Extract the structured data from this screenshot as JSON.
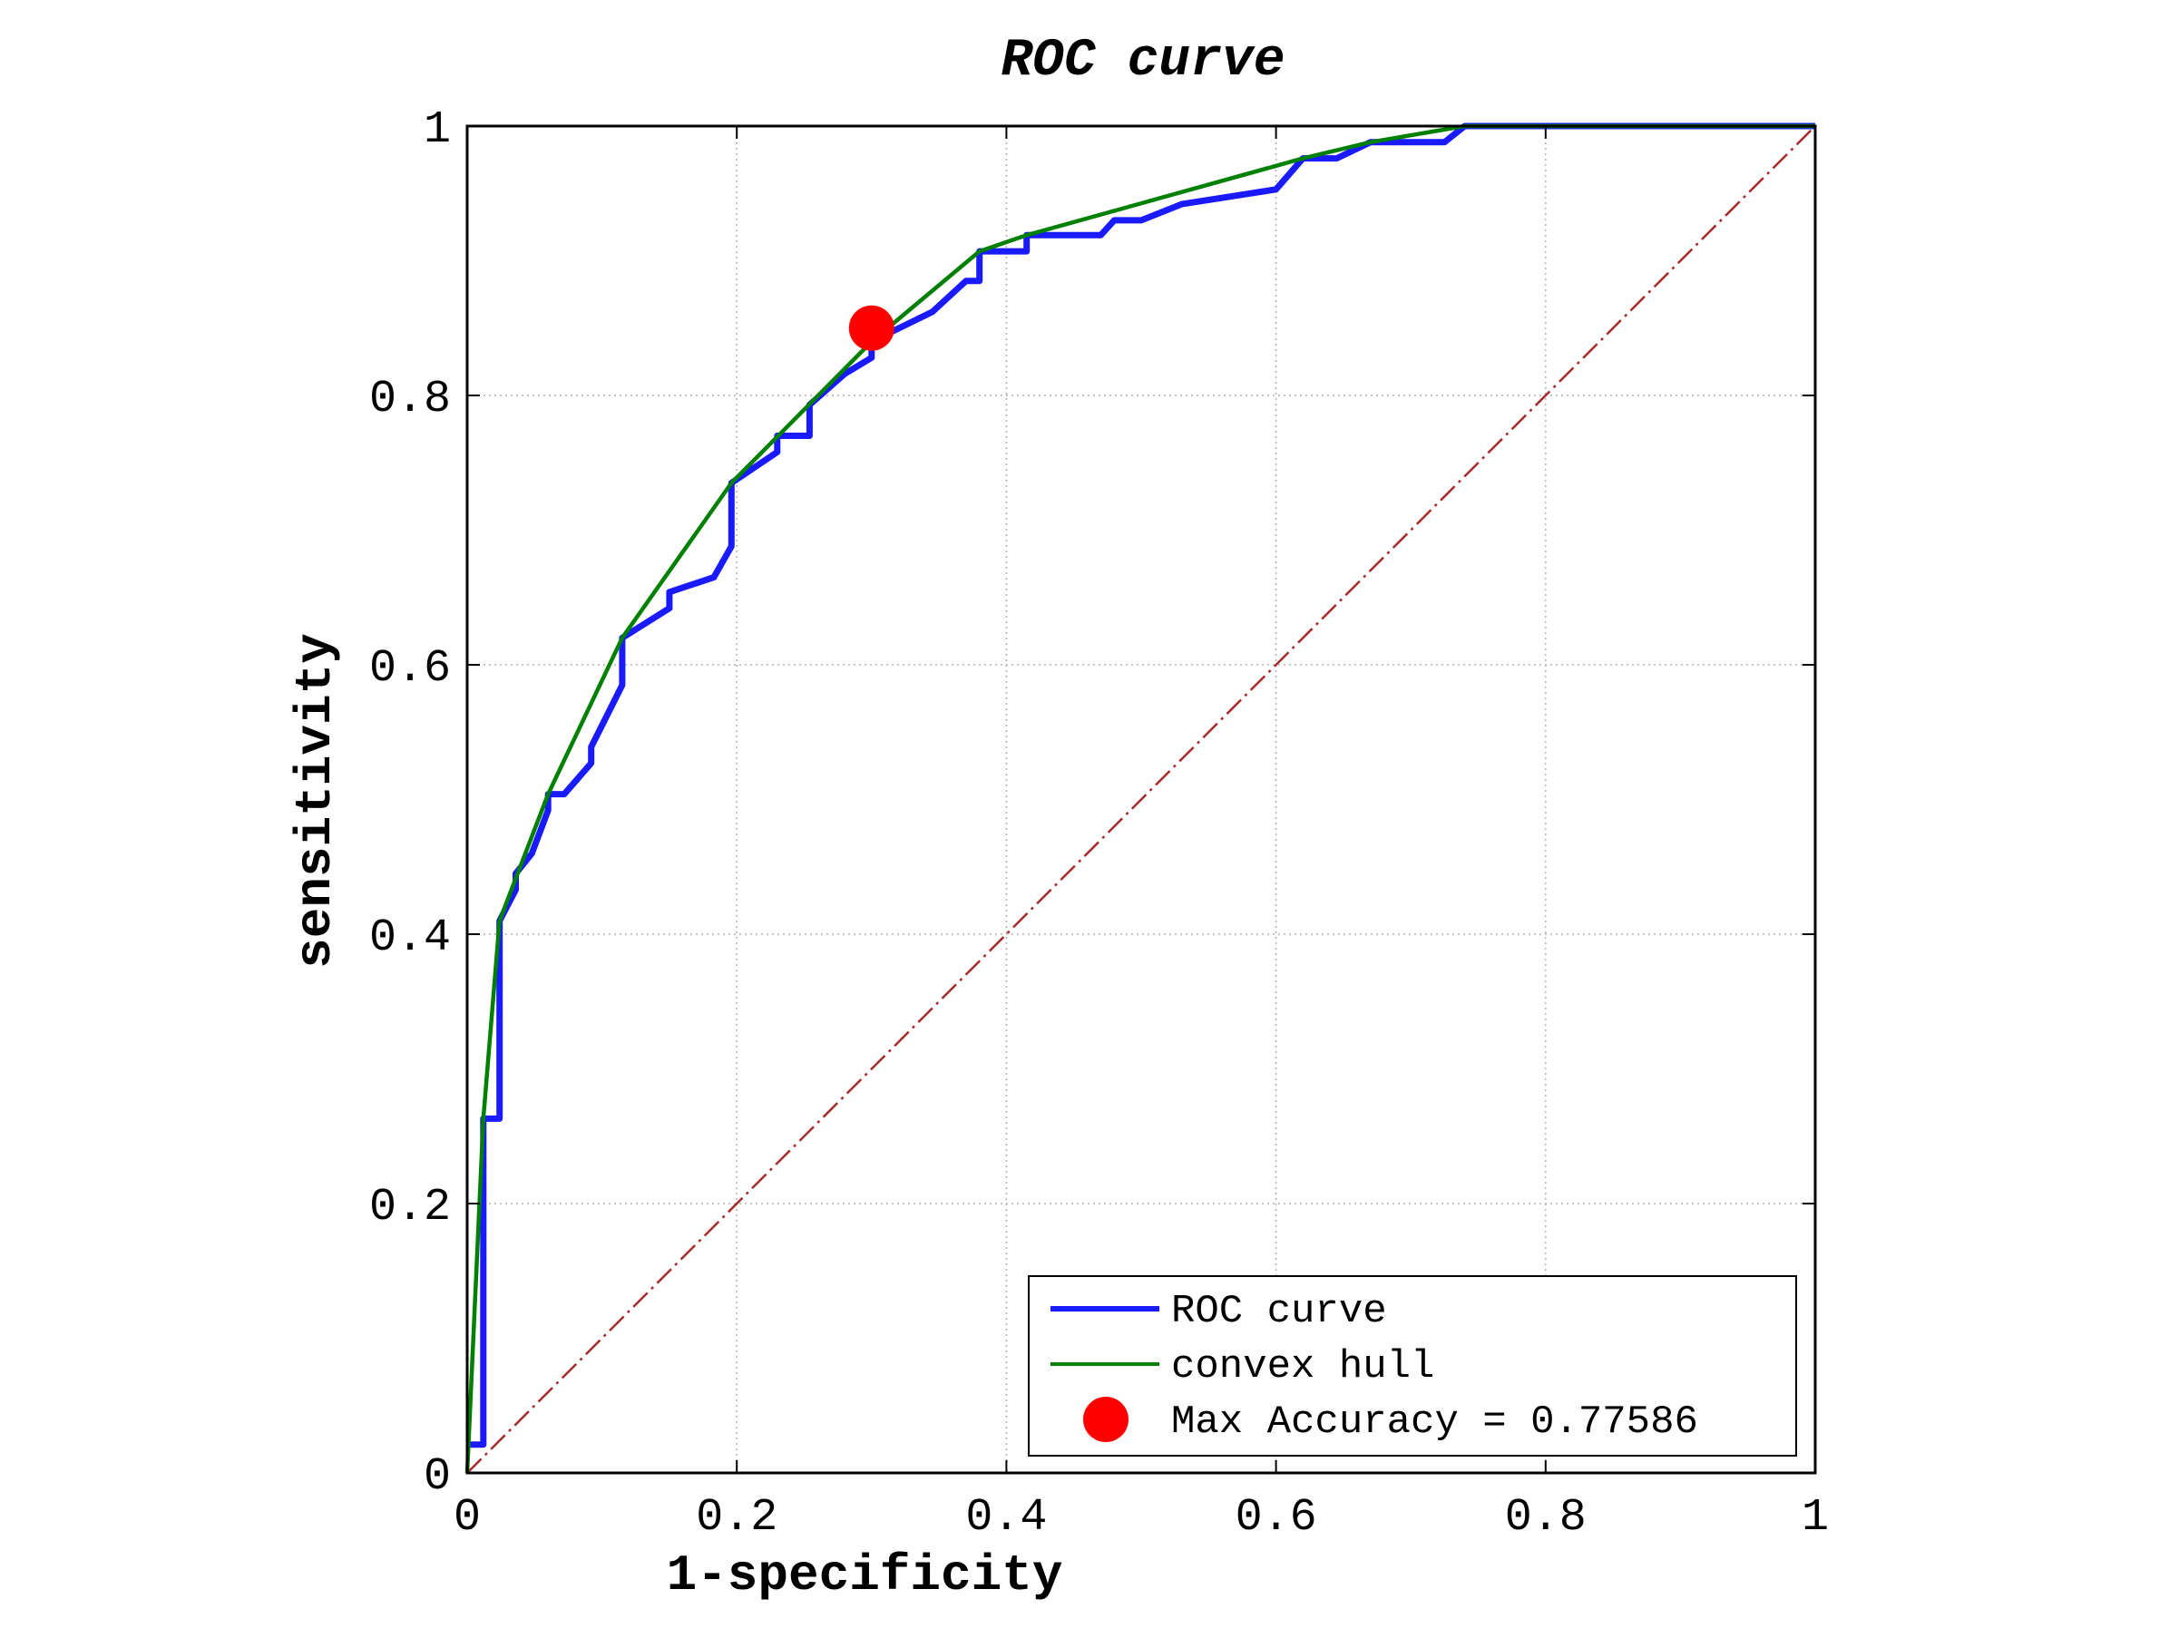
{
  "chart_data": {
    "type": "line",
    "title": "ROC curve",
    "xlabel": "1-specificity",
    "ylabel": "sensitivity",
    "xlim": [
      0,
      1
    ],
    "ylim": [
      0,
      1
    ],
    "grid": true,
    "legend_position": "bottom-right",
    "x_ticks": [
      "0",
      "0.2",
      "0.4",
      "0.6",
      "0.8",
      "1"
    ],
    "y_ticks": [
      "0",
      "0.2",
      "0.4",
      "0.6",
      "0.8",
      "1"
    ],
    "series": [
      {
        "name": "ROC curve",
        "color": "#1a1aff",
        "style": "solid",
        "x": [
          0,
          0.012,
          0.012,
          0.024,
          0.024,
          0.036,
          0.036,
          0.048,
          0.06,
          0.06,
          0.072,
          0.092,
          0.092,
          0.115,
          0.115,
          0.15,
          0.15,
          0.183,
          0.196,
          0.196,
          0.23,
          0.23,
          0.254,
          0.254,
          0.28,
          0.3,
          0.3,
          0.345,
          0.37,
          0.38,
          0.38,
          0.415,
          0.415,
          0.47,
          0.48,
          0.5,
          0.53,
          0.6,
          0.62,
          0.645,
          0.67,
          0.725,
          0.74,
          1
        ],
        "y": [
          0.021,
          0.021,
          0.263,
          0.263,
          0.41,
          0.433,
          0.445,
          0.46,
          0.492,
          0.504,
          0.504,
          0.527,
          0.539,
          0.585,
          0.62,
          0.642,
          0.654,
          0.665,
          0.688,
          0.735,
          0.758,
          0.77,
          0.77,
          0.793,
          0.816,
          0.828,
          0.84,
          0.862,
          0.885,
          0.885,
          0.907,
          0.907,
          0.919,
          0.919,
          0.93,
          0.93,
          0.942,
          0.953,
          0.976,
          0.976,
          0.988,
          0.988,
          1,
          1
        ]
      },
      {
        "name": "convex hull",
        "color": "#008000",
        "style": "solid",
        "x": [
          0,
          0.012,
          0.024,
          0.06,
          0.115,
          0.196,
          0.3,
          0.38,
          0.415,
          0.62,
          0.67,
          0.74,
          1
        ],
        "y": [
          0,
          0.263,
          0.41,
          0.504,
          0.62,
          0.735,
          0.84,
          0.907,
          0.919,
          0.976,
          0.988,
          1,
          1
        ]
      },
      {
        "color": "#a52a2a",
        "style": "dash-dot",
        "x": [
          0,
          1
        ],
        "y": [
          0,
          1
        ]
      }
    ],
    "points": [
      {
        "name": "Max Accuracy = 0.77586",
        "x": 0.3,
        "y": 0.85,
        "color": "#ff0000"
      }
    ]
  }
}
